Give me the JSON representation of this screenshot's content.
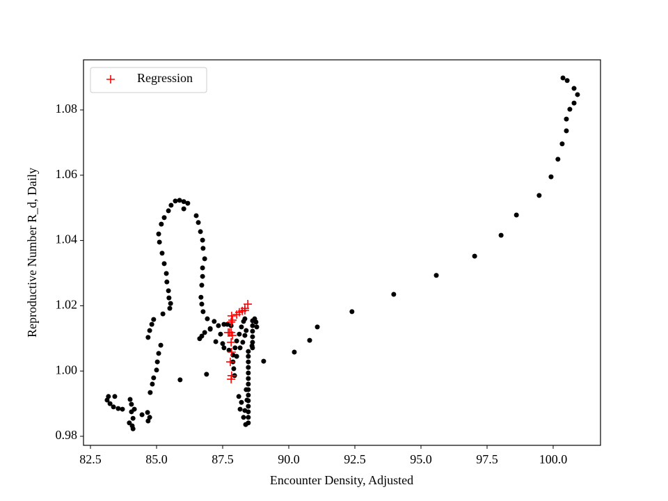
{
  "chart_data": {
    "type": "scatter",
    "x_label": "Encounter Density, Adjusted",
    "y_label": "Reproductive Number R_d, Daily",
    "xlim": [
      82.237,
      101.79
    ],
    "ylim": [
      0.97723,
      1.09535
    ],
    "xticks": [
      82.5,
      {
        "value": 85,
        "label": "85.0"
      },
      87.5,
      {
        "value": 90,
        "label": "90.0"
      },
      92.5,
      {
        "value": 95,
        "label": "95.0"
      },
      97.5,
      {
        "value": 100,
        "label": "100.0"
      }
    ],
    "yticks": [
      0.98,
      {
        "value": 1,
        "label": "1.00"
      },
      1.02,
      1.04,
      1.06,
      1.08
    ],
    "grid": false,
    "legend_position": "upper left",
    "series": [
      {
        "color": "#000000",
        "marker": "o",
        "x": [
          89.05,
          90.21,
          90.79,
          91.08,
          92.39,
          93.97,
          95.58,
          97.03,
          98.03,
          98.61,
          99.47,
          99.92,
          100.18,
          100.34,
          100.5,
          100.5,
          100.63,
          100.79,
          100.92,
          100.79,
          100.53,
          100.37,
          88.47,
          88.47,
          88.47,
          88.47,
          88.47,
          88.47,
          88.47,
          88.47,
          88.47,
          88.47,
          88.47,
          88.47,
          88.47,
          88.47,
          88.63,
          88.63,
          88.63,
          88.63,
          88.63,
          88.63,
          88.16,
          88.21,
          88.11,
          88.29,
          88.37,
          88.34,
          87.95,
          87.92,
          87.89,
          87.89,
          87.97,
          88.03,
          88.13,
          88.21,
          88.29,
          88.34,
          84.68,
          84.74,
          84.82,
          84.89,
          85.24,
          85.5,
          85.53,
          85.47,
          85.45,
          85.39,
          85.37,
          85.29,
          85.21,
          85.11,
          85.08,
          85.18,
          85.29,
          85.45,
          85.55,
          85.71,
          85.87,
          86.03,
          86.18,
          86.03,
          86.5,
          86.58,
          86.66,
          86.74,
          86.76,
          86.82,
          86.74,
          86.74,
          86.71,
          86.68,
          86.71,
          86.76,
          86.92,
          87.03,
          87.18,
          87.34,
          85.16,
          85.08,
          85.03,
          85.0,
          84.89,
          84.84,
          84.76,
          84.66,
          84.74,
          84.68,
          84.45,
          84.16,
          84.11,
          84.08,
          84.11,
          83.97,
          84.05,
          84.05,
          84.0,
          83.71,
          83.55,
          83.37,
          83.24,
          83.13,
          83.18,
          83.42,
          85.89,
          86.89,
          86.63,
          86.71,
          86.82,
          87.03,
          87.24,
          87.5,
          87.55,
          87.74,
          87.55,
          87.68,
          87.82,
          87.42,
          88.71,
          88.76,
          88.79,
          88.61,
          88.39,
          88.34,
          88.26,
          88.16,
          88.03,
          88.39,
          88.42
        ],
        "y": [
          1.003,
          1.0058,
          1.0094,
          1.0135,
          1.0182,
          1.0235,
          1.0293,
          1.0352,
          1.0416,
          1.0478,
          1.0538,
          1.0595,
          1.0649,
          1.0696,
          1.0736,
          1.0772,
          1.0802,
          1.0821,
          1.0847,
          1.0866,
          1.089,
          1.0898,
          0.9841,
          0.9858,
          0.9875,
          0.9892,
          0.9909,
          0.9926,
          0.9943,
          0.996,
          0.9977,
          0.9994,
          1.0011,
          1.0028,
          1.0045,
          1.006,
          1.0071,
          1.0088,
          1.0105,
          1.0122,
          1.0139,
          1.0154,
          0.9883,
          0.9904,
          0.9922,
          0.9858,
          0.9836,
          0.9879,
          0.9986,
          1.0007,
          1.0028,
          1.0049,
          1.0071,
          1.0092,
          1.0113,
          1.0135,
          1.0152,
          1.016,
          1.0103,
          1.0124,
          1.0143,
          1.0158,
          1.0175,
          1.0192,
          1.0207,
          1.0224,
          1.0246,
          1.0273,
          1.0299,
          1.0329,
          1.0361,
          1.0395,
          1.042,
          1.045,
          1.047,
          1.0491,
          1.0508,
          1.0521,
          1.0523,
          1.0519,
          1.0514,
          1.0497,
          1.0476,
          1.0455,
          1.0427,
          1.0401,
          1.0376,
          1.0344,
          1.0316,
          1.029,
          1.0263,
          1.0226,
          1.0205,
          1.0182,
          1.016,
          1.013,
          1.0152,
          1.0139,
          1.0079,
          1.0054,
          1.0028,
          1.0003,
          0.9979,
          0.996,
          0.9934,
          0.9873,
          0.9858,
          0.9847,
          0.9866,
          0.9883,
          0.9855,
          0.9832,
          0.9823,
          0.9841,
          0.9875,
          0.9898,
          0.9913,
          0.9883,
          0.9885,
          0.989,
          0.99,
          0.9911,
          0.9922,
          0.9922,
          0.9973,
          0.999,
          1.0099,
          1.0107,
          1.0118,
          1.0128,
          1.009,
          1.0084,
          1.0071,
          1.0064,
          1.0143,
          1.0143,
          1.0139,
          1.0113,
          1.016,
          1.015,
          1.0135,
          1.0077,
          1.0124,
          1.0109,
          1.0088,
          1.0071,
          1.0045,
          0.9943,
          0.9911
        ]
      },
      {
        "name": "Regression",
        "color": "#ff0000",
        "marker": "+",
        "x": [
          87.84,
          87.87,
          88.03,
          88.13,
          88.24,
          88.34,
          88.45,
          88.34,
          87.82,
          87.71,
          87.82,
          87.87,
          87.82,
          87.84,
          87.79,
          87.84,
          87.82,
          87.76
        ],
        "y": [
          1.0169,
          1.0156,
          1.0173,
          1.018,
          1.0184,
          1.0192,
          1.0205,
          1.0186,
          1.015,
          1.0118,
          1.0118,
          1.0109,
          1.0088,
          1.0058,
          1.0028,
          0.9986,
          0.9975,
          1.0118
        ]
      }
    ]
  }
}
